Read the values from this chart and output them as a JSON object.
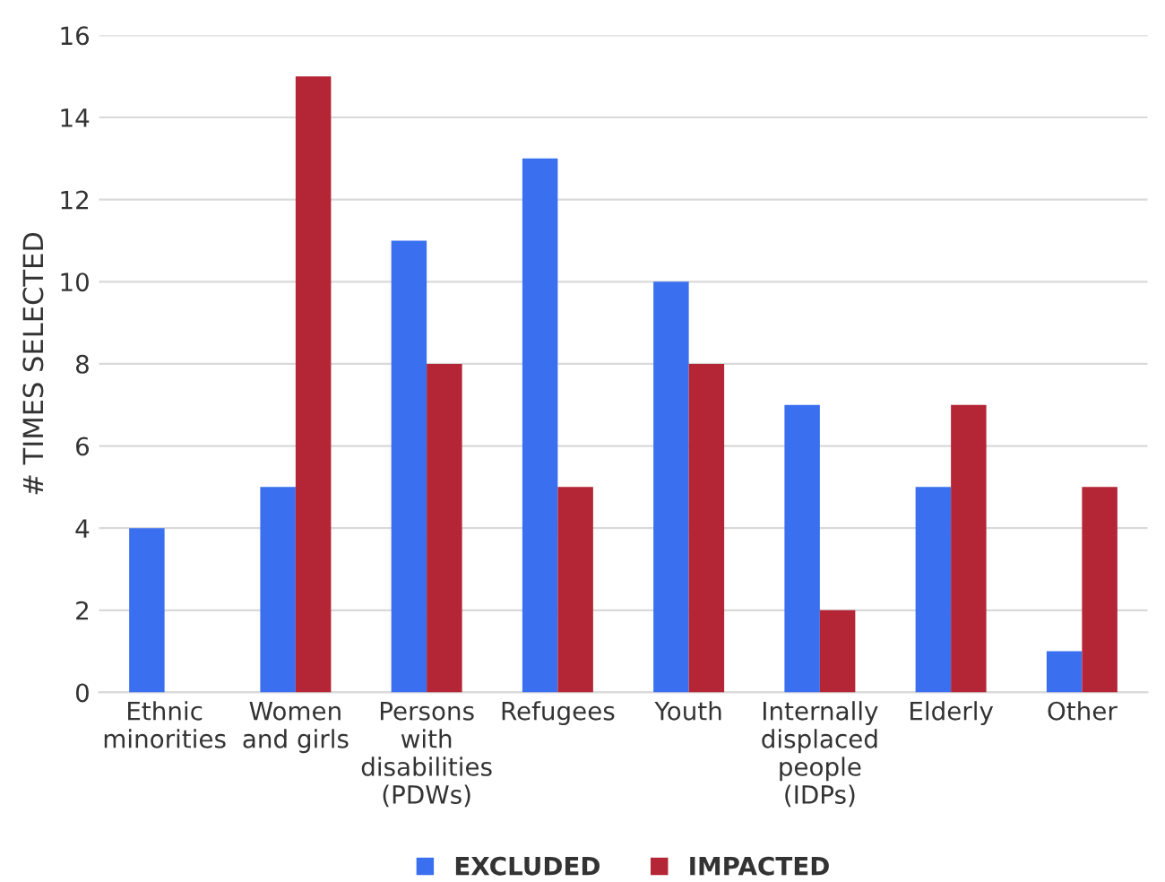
{
  "chart_data": {
    "type": "bar",
    "ylabel": "# TIMES SELECTED",
    "categories": [
      "Ethnic\nminorities",
      "Women\nand girls",
      "Persons\nwith\ndisabilities\n(PDWs)",
      "Refugees",
      "Youth",
      "Internally\ndisplaced\npeople\n(IDPs)",
      "Elderly",
      "Other"
    ],
    "series": [
      {
        "name": "EXCLUDED",
        "color": "#3a70f0",
        "values": [
          4,
          5,
          11,
          13,
          10,
          7,
          5,
          1
        ]
      },
      {
        "name": "IMPACTED",
        "color": "#b42535",
        "values": [
          0,
          15,
          8,
          5,
          8,
          2,
          7,
          5
        ]
      }
    ],
    "ylim": [
      0,
      16
    ],
    "yticks": [
      0,
      2,
      4,
      6,
      8,
      10,
      12,
      14,
      16
    ],
    "grid": "y",
    "legend": "bottom"
  }
}
